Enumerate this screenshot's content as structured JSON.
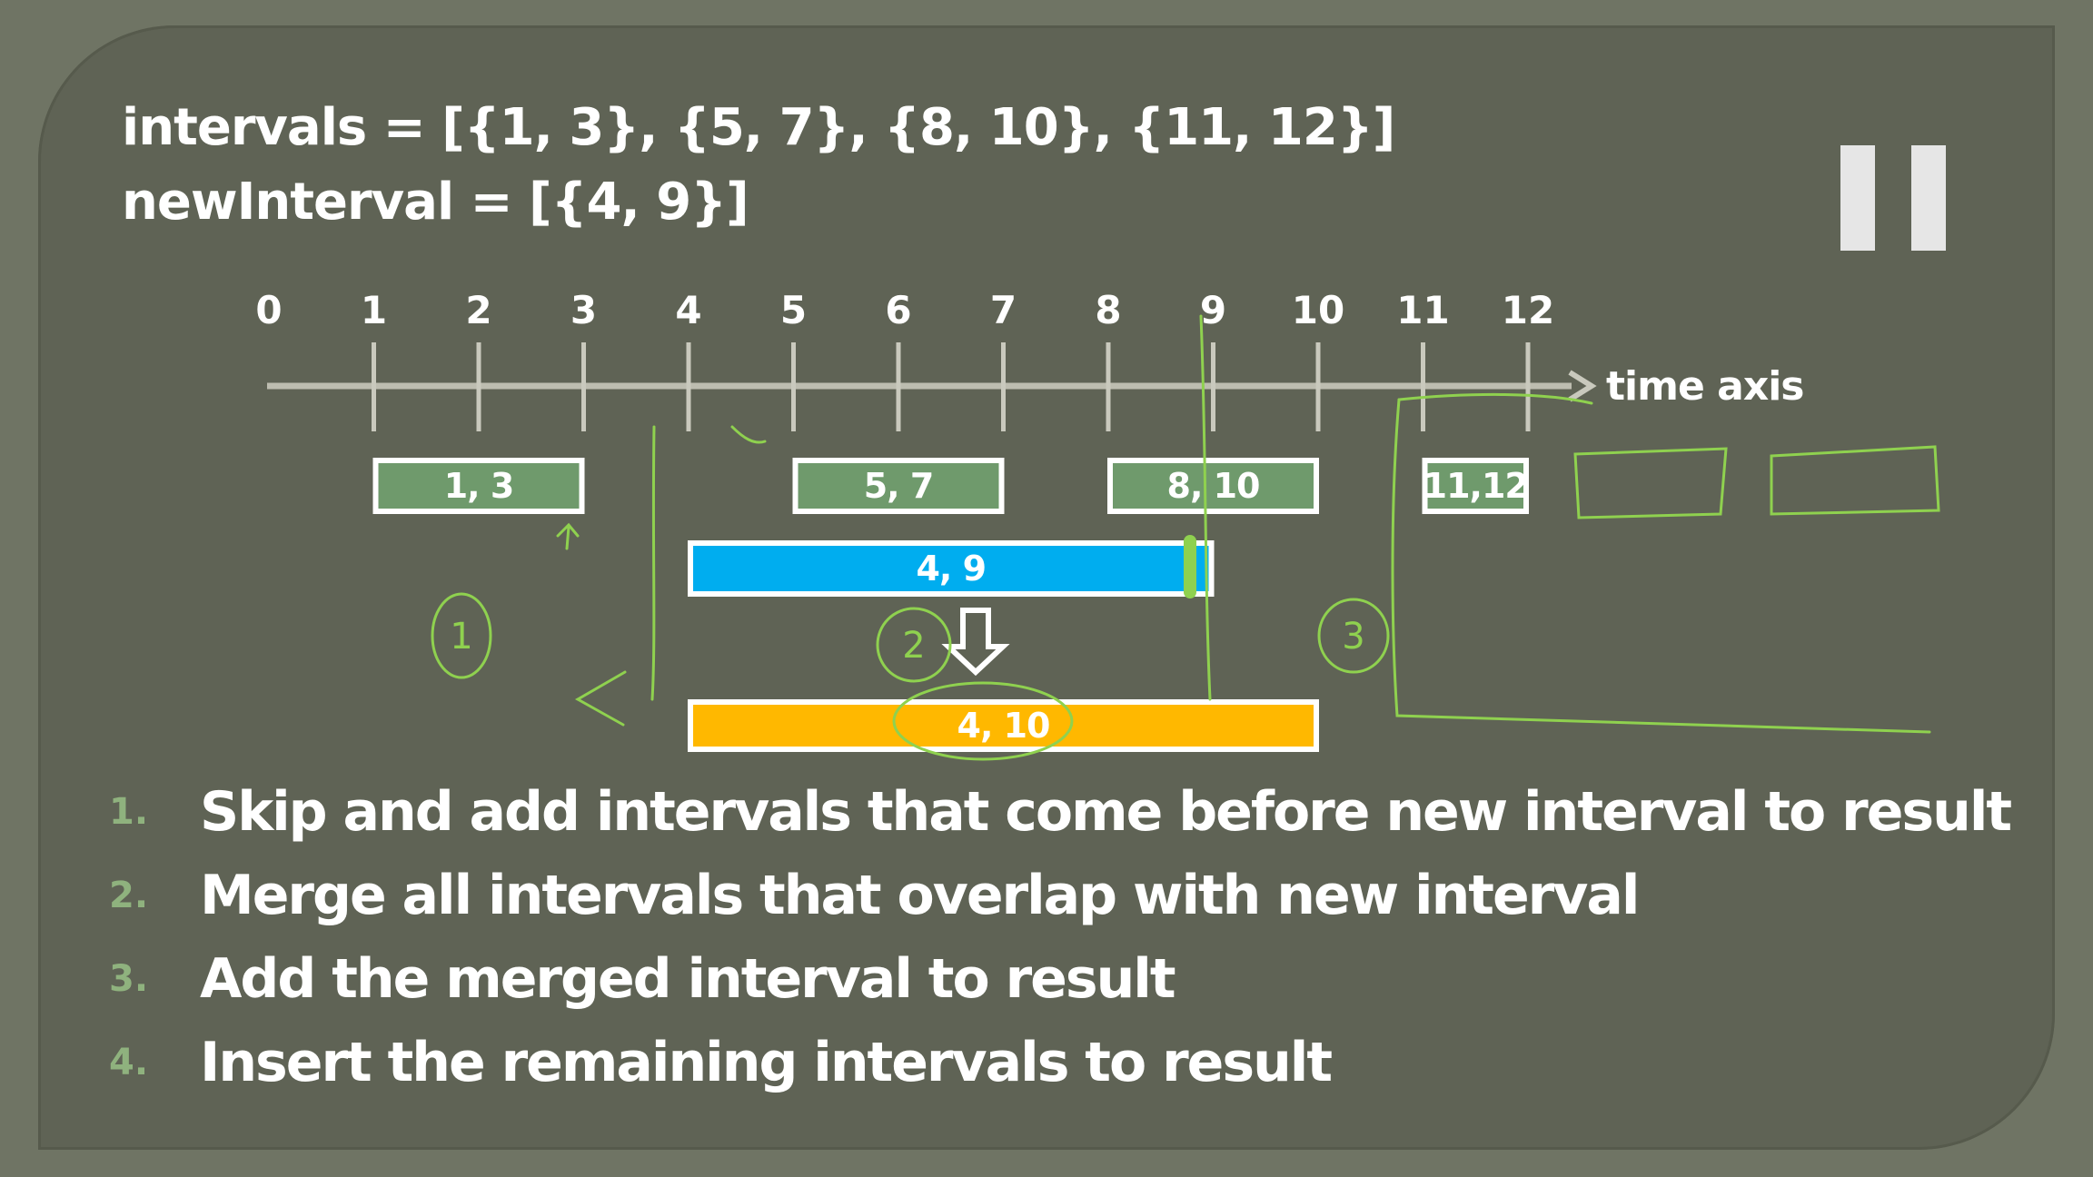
{
  "code": {
    "intervals_line": "intervals = [{1, 3}, {5, 7}, {8, 10}, {11, 12}]",
    "new_interval_line": "newInterval = [{4, 9}]"
  },
  "axis": {
    "label": "time axis",
    "ticks": [
      "0",
      "1",
      "2",
      "3",
      "4",
      "5",
      "6",
      "7",
      "8",
      "9",
      "10",
      "11",
      "12"
    ]
  },
  "intervals": [
    {
      "start": 1,
      "end": 3,
      "label": "1, 3"
    },
    {
      "start": 5,
      "end": 7,
      "label": "5, 7"
    },
    {
      "start": 8,
      "end": 10,
      "label": "8, 10"
    },
    {
      "start": 11,
      "end": 12,
      "label": "11,12"
    }
  ],
  "new_interval": {
    "start": 4,
    "end": 9,
    "label": "4, 9"
  },
  "merged_interval": {
    "start": 4,
    "end": 10,
    "label": "4, 10"
  },
  "annotations": [
    "1",
    "2",
    "3"
  ],
  "steps": [
    {
      "number": "1.",
      "text": "Skip and add intervals that come before new interval to result"
    },
    {
      "number": "2.",
      "text": "Merge all intervals that overlap with new interval"
    },
    {
      "number": "3.",
      "text": "Add the merged interval to result"
    },
    {
      "number": "4.",
      "text": "Insert the remaining intervals to result"
    }
  ],
  "colors": {
    "background": "#5f6355",
    "interval_fill": "#6f9a6c",
    "new_interval_fill": "#00adef",
    "merged_fill": "#ffb800",
    "annotation_ink": "#8fd14f",
    "step_number": "#8fb27e"
  },
  "icons": [
    "pause-icon",
    "down-arrow-icon"
  ]
}
